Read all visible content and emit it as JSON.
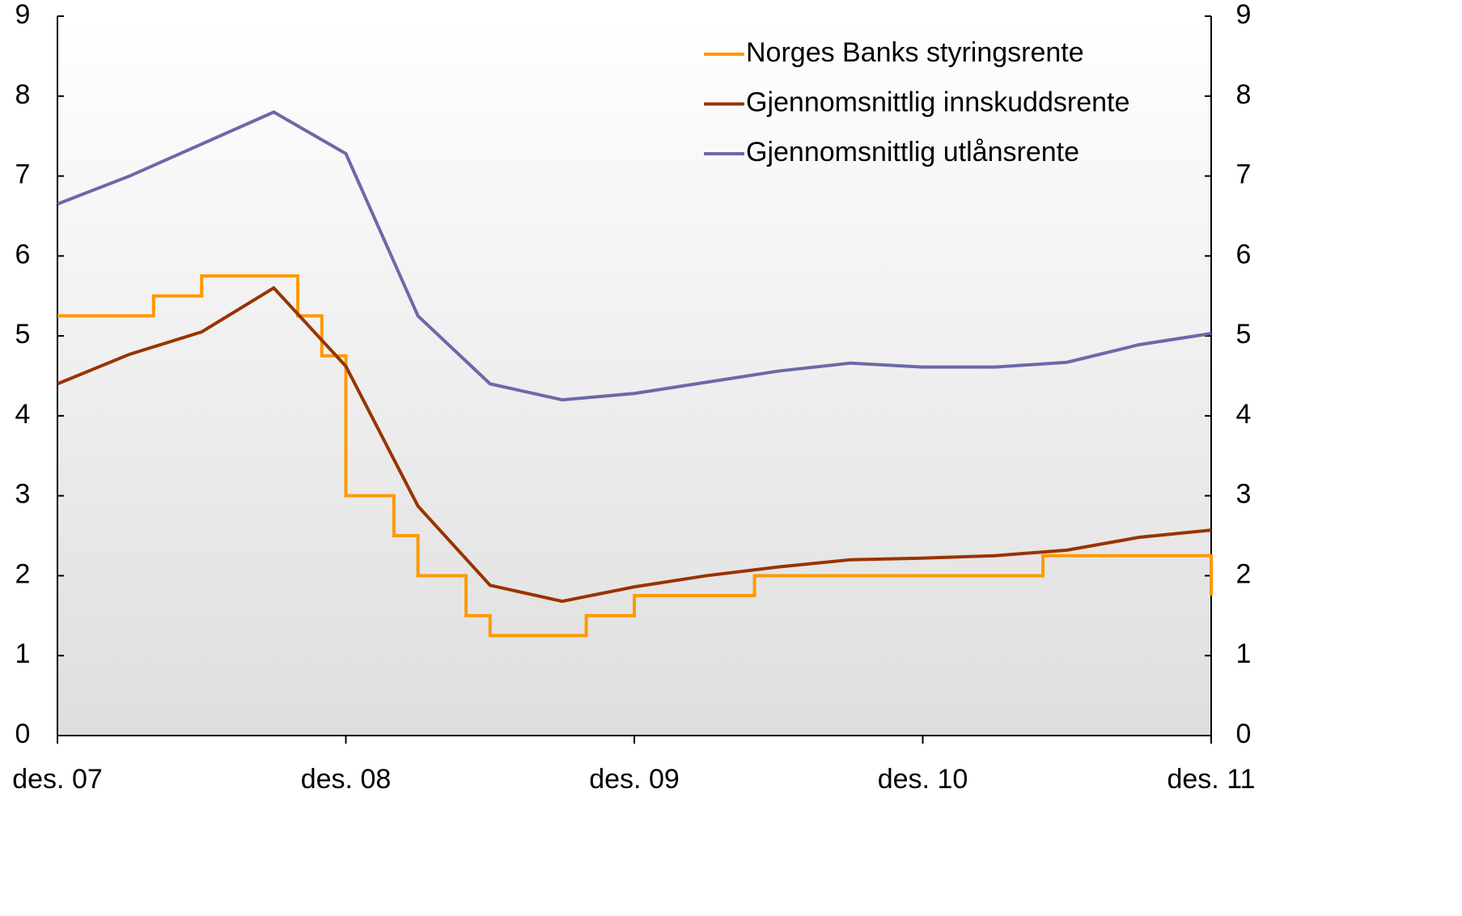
{
  "chart_data": {
    "type": "line",
    "xlim": [
      "2007-12",
      "2011-12"
    ],
    "xticks": [
      {
        "value": "2007-12",
        "label": "des. 07"
      },
      {
        "value": "2008-12",
        "label": "des. 08"
      },
      {
        "value": "2009-12",
        "label": "des. 09"
      },
      {
        "value": "2010-12",
        "label": "des. 10"
      },
      {
        "value": "2011-12",
        "label": "des. 11"
      }
    ],
    "ylim": [
      0,
      9
    ],
    "yticks": [
      0,
      1,
      2,
      3,
      4,
      5,
      6,
      7,
      8,
      9
    ],
    "y2lim": [
      0,
      9
    ],
    "y2ticks": [
      0,
      1,
      2,
      3,
      4,
      5,
      6,
      7,
      8,
      9
    ],
    "legend": "upper right",
    "series": [
      {
        "name": "Norges Banks styringsrente",
        "color": "#ff9900",
        "step": true,
        "x": [
          "2007-12",
          "2008-04",
          "2008-06",
          "2008-10",
          "2008-11",
          "2008-12",
          "2009-02",
          "2009-03",
          "2009-05",
          "2009-06",
          "2009-10",
          "2009-12",
          "2010-05",
          "2011-05",
          "2011-12"
        ],
        "values": [
          5.25,
          5.5,
          5.75,
          5.25,
          4.75,
          3.0,
          2.5,
          2.0,
          1.5,
          1.25,
          1.5,
          1.75,
          2.0,
          2.25,
          1.75
        ]
      },
      {
        "name": "Gjennomsnittlig innskuddsrente",
        "color": "#993300",
        "x": [
          "2007-12",
          "2008-03",
          "2008-06",
          "2008-09",
          "2008-12",
          "2009-03",
          "2009-06",
          "2009-09",
          "2009-12",
          "2010-03",
          "2010-06",
          "2010-09",
          "2010-12",
          "2011-03",
          "2011-06",
          "2011-09",
          "2011-12"
        ],
        "values": [
          4.4,
          4.77,
          5.05,
          5.6,
          4.62,
          2.87,
          1.88,
          1.68,
          1.86,
          2.0,
          2.11,
          2.2,
          2.22,
          2.25,
          2.32,
          2.48,
          2.57
        ]
      },
      {
        "name": "Gjennomsnittlig utlånsrente",
        "color": "#6a6aa8",
        "x": [
          "2007-12",
          "2008-03",
          "2008-06",
          "2008-09",
          "2008-12",
          "2009-03",
          "2009-06",
          "2009-09",
          "2009-12",
          "2010-03",
          "2010-06",
          "2010-09",
          "2010-12",
          "2011-03",
          "2011-06",
          "2011-09",
          "2011-12"
        ],
        "values": [
          6.65,
          7.0,
          7.4,
          7.8,
          7.28,
          5.25,
          4.4,
          4.2,
          4.28,
          4.42,
          4.56,
          4.66,
          4.61,
          4.61,
          4.67,
          4.89,
          5.03
        ]
      }
    ]
  }
}
